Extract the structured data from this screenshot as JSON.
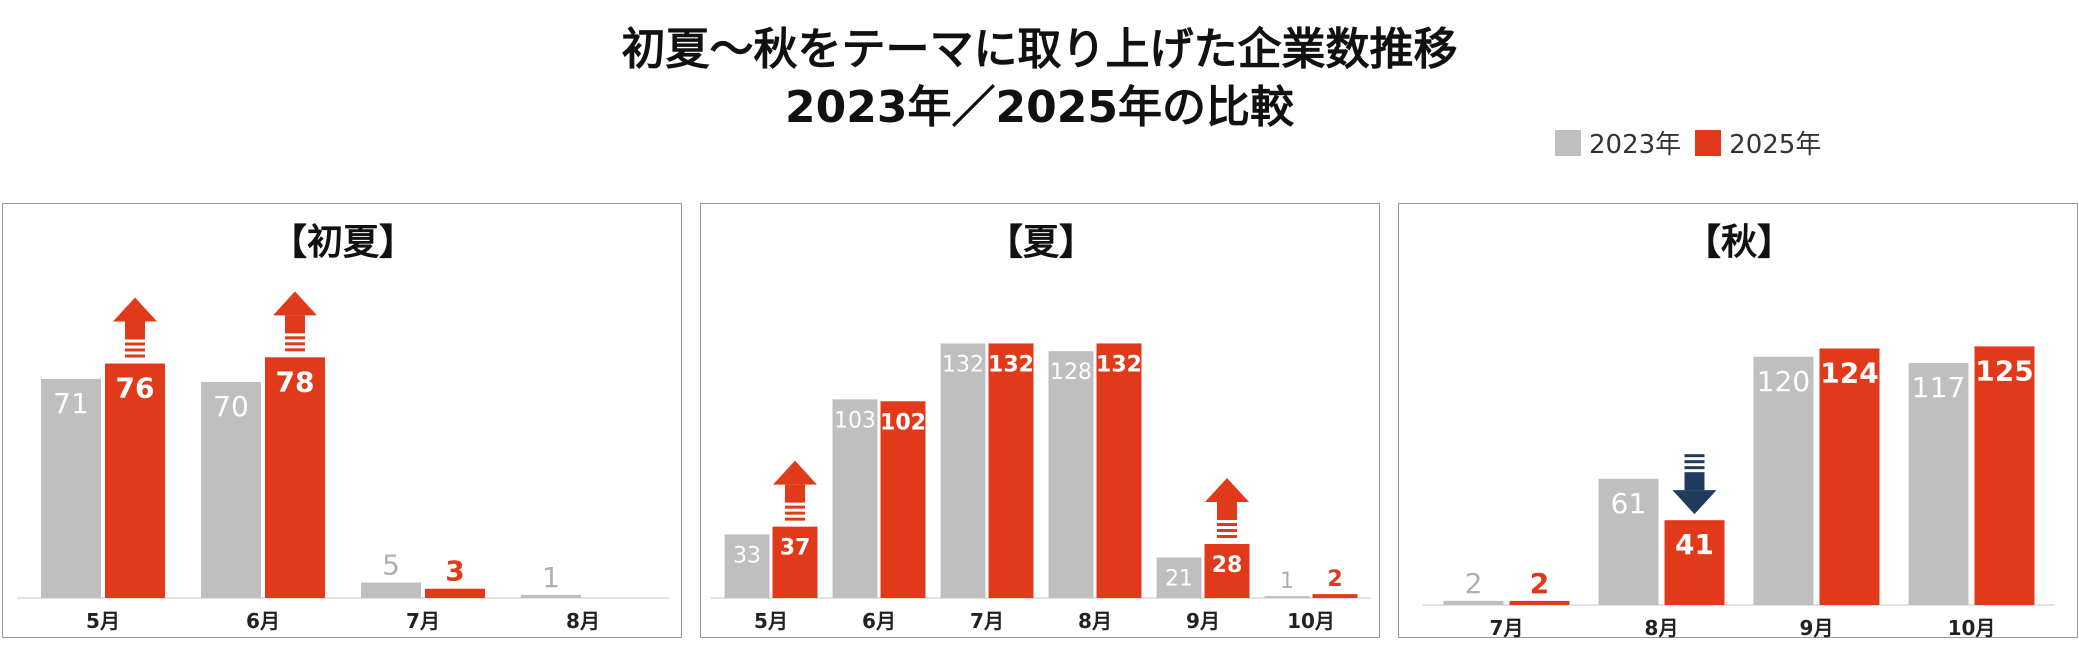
{
  "title_line1": "初夏〜秋をテーマに取り上げた企業数推移",
  "title_line2": "2023年／2025年の比較",
  "legend": [
    {
      "name": "2023年",
      "color": "#bfbfbf"
    },
    {
      "name": "2025年",
      "color": "#e03a1a"
    }
  ],
  "colors": {
    "s2023": "#bfbfbf",
    "s2025": "#e03a1a",
    "up_arrow": "#e03a1a",
    "down_arrow": "#1f3b5e"
  },
  "chart_data": [
    {
      "type": "bar",
      "title": "【初夏】",
      "categories": [
        "5月",
        "6月",
        "7月",
        "8月"
      ],
      "series": [
        {
          "name": "2023年",
          "values": [
            71,
            70,
            5,
            1
          ]
        },
        {
          "name": "2025年",
          "values": [
            76,
            78,
            3,
            null
          ]
        }
      ],
      "arrows": [
        {
          "category": "5月",
          "direction": "up"
        },
        {
          "category": "6月",
          "direction": "up"
        }
      ],
      "ylim": [
        0,
        105
      ]
    },
    {
      "type": "bar",
      "title": "【夏】",
      "categories": [
        "5月",
        "6月",
        "7月",
        "8月",
        "9月",
        "10月"
      ],
      "series": [
        {
          "name": "2023年",
          "values": [
            33,
            103,
            132,
            128,
            21,
            1
          ]
        },
        {
          "name": "2025年",
          "values": [
            37,
            102,
            132,
            132,
            28,
            2
          ]
        }
      ],
      "arrows": [
        {
          "category": "5月",
          "direction": "up"
        },
        {
          "category": "9月",
          "direction": "up"
        }
      ],
      "ylim": [
        0,
        168
      ]
    },
    {
      "type": "bar",
      "title": "【秋】",
      "categories": [
        "7月",
        "8月",
        "9月",
        "10月"
      ],
      "series": [
        {
          "name": "2023年",
          "values": [
            2,
            61,
            120,
            117
          ]
        },
        {
          "name": "2025年",
          "values": [
            2,
            41,
            124,
            125
          ]
        }
      ],
      "arrows": [
        {
          "category": "8月",
          "direction": "down"
        }
      ],
      "ylim": [
        0,
        160
      ]
    }
  ]
}
